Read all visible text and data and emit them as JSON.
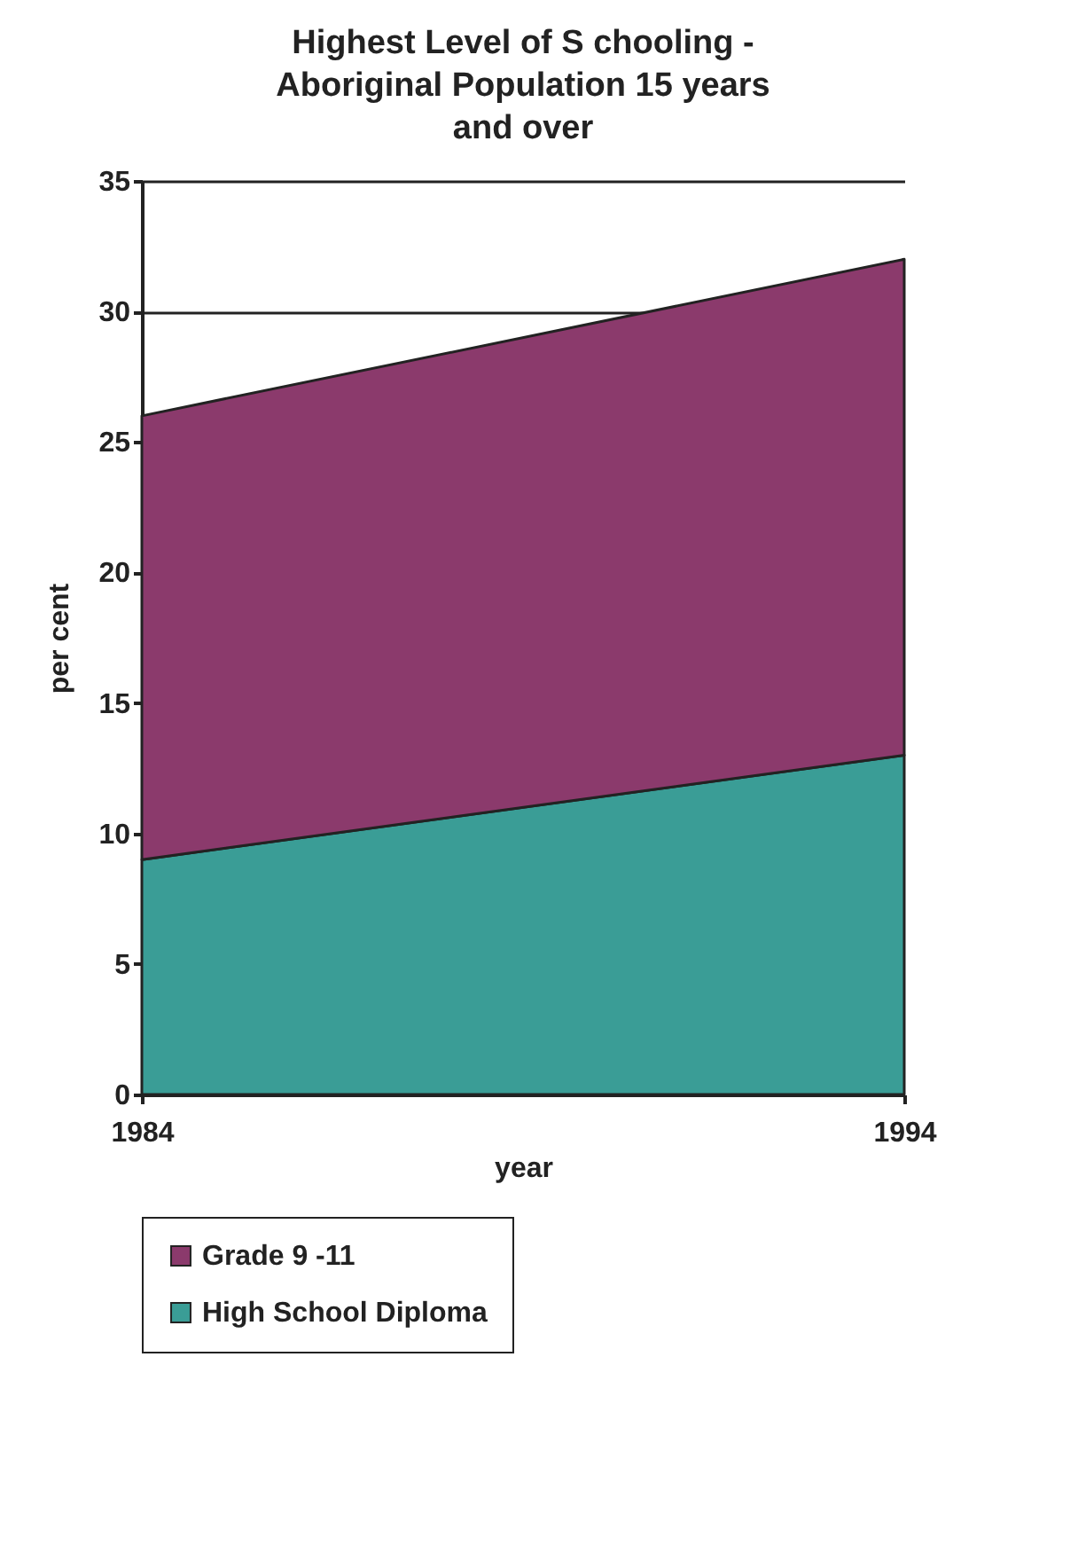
{
  "chart_data": {
    "type": "area",
    "title": "Highest Level of S chooling -\nAboriginal Population 15 years\nand over",
    "xlabel": "year",
    "ylabel": "per cent",
    "x": [
      1984,
      1994
    ],
    "xlim": [
      1984,
      1994
    ],
    "xticks": [
      1984,
      1994
    ],
    "ylim": [
      0,
      35
    ],
    "yticks": [
      0,
      5,
      10,
      15,
      20,
      25,
      30,
      35
    ],
    "grid": "y",
    "stacked": true,
    "legend": "bottom",
    "series": [
      {
        "name": "High School Diploma",
        "color": "#3a9d96",
        "values": [
          9,
          13
        ]
      },
      {
        "name": "Grade 9 -11",
        "color": "#8b3a6c",
        "values": [
          17,
          19
        ]
      }
    ]
  }
}
